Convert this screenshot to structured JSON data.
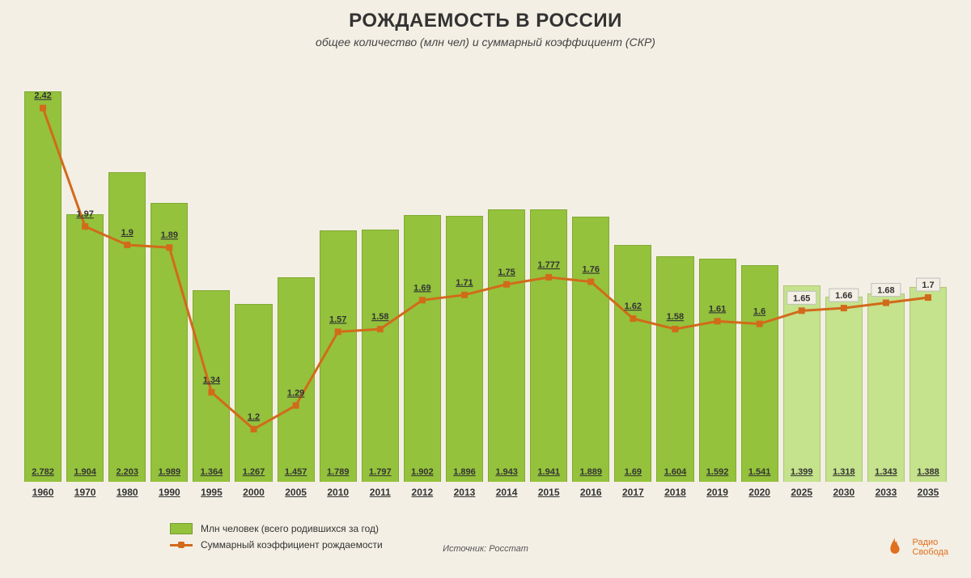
{
  "title": "РОЖДАЕМОСТЬ В РОССИИ",
  "subtitle": "общее количество (млн чел) и суммарный коэффициент (СКР)",
  "source": "Источник: Росстат",
  "branding": {
    "line1": "Радио",
    "line2": "Свобода",
    "logo_color": "#e06f1f"
  },
  "chart": {
    "type": "bar+line",
    "background_color": "#f3efe4",
    "bar_color_solid": "#94c23c",
    "bar_color_forecast": "#c5e28c",
    "bar_border_color": "rgba(0,0,0,0.12)",
    "line_color": "#d26a1b",
    "marker_color": "#d26a1b",
    "line_width": 3,
    "marker_size": 8,
    "bar_label_fontsize": 11,
    "line_label_fontsize": 11,
    "title_fontsize": 24,
    "subtitle_fontsize": 14,
    "bar_scale_max": 3.0,
    "line_scale_min": 1.0,
    "line_scale_max": 2.6,
    "forecast_from_index": 18,
    "years": [
      "1960",
      "1970",
      "1980",
      "1990",
      "1995",
      "2000",
      "2005",
      "2010",
      "2011",
      "2012",
      "2013",
      "2014",
      "2015",
      "2016",
      "2017",
      "2018",
      "2019",
      "2020",
      "2025",
      "2030",
      "2033",
      "2035"
    ],
    "bar_values": [
      2.782,
      1.904,
      2.203,
      1.989,
      1.364,
      1.267,
      1.457,
      1.789,
      1.797,
      1.902,
      1.896,
      1.943,
      1.941,
      1.889,
      1.69,
      1.604,
      1.592,
      1.541,
      1.399,
      1.318,
      1.343,
      1.388
    ],
    "line_values": [
      2.42,
      1.97,
      1.9,
      1.89,
      1.34,
      1.2,
      1.29,
      1.57,
      1.58,
      1.69,
      1.71,
      1.75,
      1.777,
      1.76,
      1.62,
      1.58,
      1.61,
      1.6,
      1.65,
      1.66,
      1.68,
      1.7
    ]
  },
  "legend": {
    "bar": "Млн человек (всего родившихся за год)",
    "line": "Суммарный коэффициент рождаемости"
  }
}
